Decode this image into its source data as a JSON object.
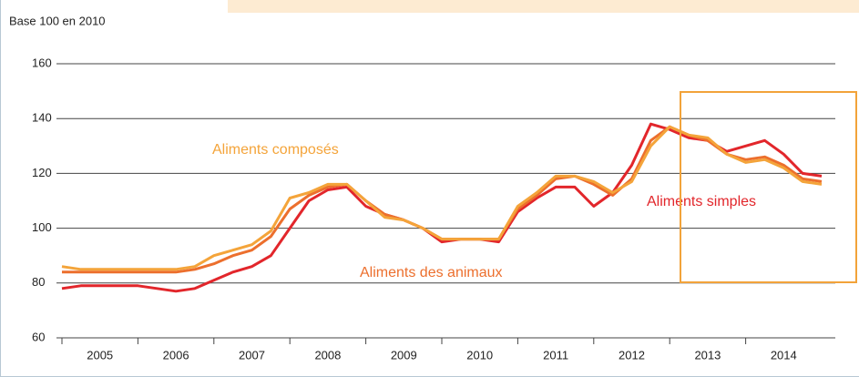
{
  "chart_data": {
    "type": "line",
    "title": "Base 100 en 2010",
    "x": [
      2005,
      2005.25,
      2005.5,
      2005.75,
      2006,
      2006.25,
      2006.5,
      2006.75,
      2007,
      2007.25,
      2007.5,
      2007.75,
      2008,
      2008.25,
      2008.5,
      2008.75,
      2009,
      2009.25,
      2009.5,
      2009.75,
      2010,
      2010.25,
      2010.5,
      2010.75,
      2011,
      2011.25,
      2011.5,
      2011.75,
      2012,
      2012.25,
      2012.5,
      2012.75,
      2013,
      2013.25,
      2013.5,
      2013.75,
      2014,
      2014.25,
      2014.5,
      2014.75,
      2015
    ],
    "series": [
      {
        "name": "Aliments simples",
        "color": "#e2262b",
        "values": [
          78,
          79,
          79,
          79,
          79,
          78,
          77,
          78,
          81,
          84,
          86,
          90,
          100,
          110,
          114,
          115,
          108,
          105,
          103,
          100,
          95,
          96,
          96,
          95,
          106,
          111,
          115,
          115,
          108,
          113,
          123,
          138,
          136,
          133,
          132,
          128,
          130,
          132,
          127,
          120,
          119
        ]
      },
      {
        "name": "Aliments des animaux",
        "color": "#ec6f2d",
        "values": [
          84,
          84,
          84,
          84,
          84,
          84,
          84,
          85,
          87,
          90,
          92,
          97,
          107,
          112,
          115,
          116,
          110,
          105,
          103,
          100,
          96,
          96,
          96,
          96,
          107,
          112,
          118,
          119,
          116,
          112,
          118,
          132,
          137,
          134,
          132,
          127,
          125,
          126,
          123,
          118,
          117
        ]
      },
      {
        "name": "Aliments composés",
        "color": "#f4a43a",
        "values": [
          86,
          85,
          85,
          85,
          85,
          85,
          85,
          86,
          90,
          92,
          94,
          99,
          111,
          113,
          116,
          116,
          110,
          104,
          103,
          100,
          96,
          96,
          96,
          96,
          108,
          113,
          119,
          119,
          117,
          113,
          117,
          130,
          137,
          134,
          133,
          127,
          124,
          125,
          122,
          117,
          116
        ]
      }
    ],
    "xlim": [
      2005,
      2015
    ],
    "xticks": [
      2005,
      2006,
      2007,
      2008,
      2009,
      2010,
      2011,
      2012,
      2013,
      2014
    ],
    "ylim": [
      60,
      160
    ],
    "yticks": [
      60,
      80,
      100,
      120,
      140,
      160
    ],
    "grid": true
  }
}
